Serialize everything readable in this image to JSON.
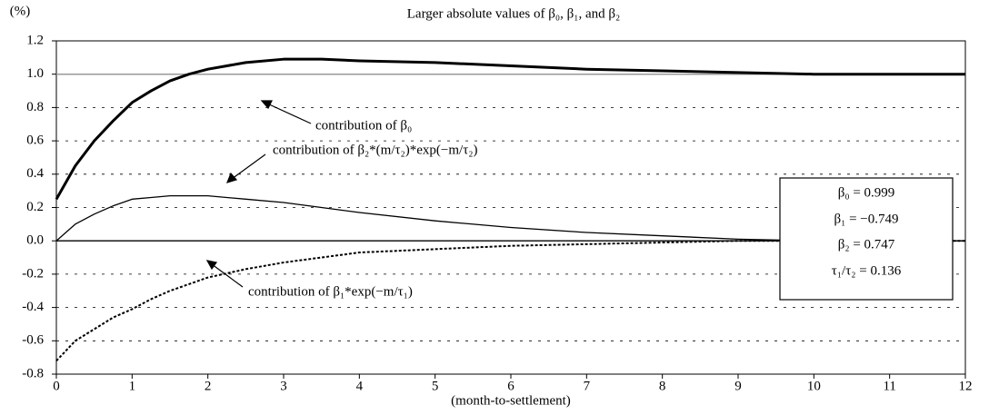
{
  "chart_data": {
    "type": "line",
    "title": "Larger absolute values of β₀, β₁, and β₂",
    "y_unit": "(%)",
    "x_label": "(month-to-settlement)",
    "x": [
      0,
      0.25,
      0.5,
      0.75,
      1,
      1.25,
      1.5,
      1.75,
      2,
      2.5,
      3,
      3.5,
      4,
      5,
      6,
      7,
      8,
      9,
      10,
      11,
      12
    ],
    "series": [
      {
        "color": "#000000",
        "width": 3,
        "dash": false,
        "values": [
          0.25,
          0.45,
          0.6,
          0.72,
          0.83,
          0.9,
          0.96,
          1.0,
          1.03,
          1.07,
          1.09,
          1.09,
          1.08,
          1.07,
          1.05,
          1.03,
          1.02,
          1.01,
          1.0,
          1.0,
          1.0
        ]
      },
      {
        "color": "#000000",
        "width": 1.3,
        "dash": false,
        "values": [
          0,
          0.1,
          0.16,
          0.21,
          0.25,
          0.26,
          0.27,
          0.27,
          0.27,
          0.25,
          0.23,
          0.2,
          0.17,
          0.12,
          0.08,
          0.05,
          0.03,
          0.01,
          0,
          0,
          0
        ]
      },
      {
        "color": "#000000",
        "width": 2,
        "dash": true,
        "values": [
          -0.72,
          -0.6,
          -0.53,
          -0.46,
          -0.41,
          -0.35,
          -0.3,
          -0.26,
          -0.22,
          -0.17,
          -0.13,
          -0.1,
          -0.07,
          -0.05,
          -0.03,
          -0.02,
          -0.01,
          0,
          0,
          0,
          0
        ]
      }
    ],
    "hlines": [
      {
        "value": 1,
        "color": "#999999"
      }
    ],
    "annotations": [
      "contribution of β₀",
      "contribution of β₂*(m/τ₂)*exp(−m/τ₂)",
      "contribution of β₁*exp(−m/τ₁)"
    ],
    "parameters": [
      "β₀ = 0.999",
      "β₁ = −0.749",
      "β₂ = 0.747",
      "τ₁/τ₂ = 0.136"
    ],
    "xlim": [
      0,
      12
    ],
    "xticks": [
      0,
      1,
      2,
      3,
      4,
      5,
      6,
      7,
      8,
      9,
      10,
      11,
      12
    ],
    "ylim": [
      -0.8,
      1.2
    ],
    "yticks": [
      -0.8,
      -0.6,
      -0.4,
      -0.2,
      {
        "value": 0,
        "label": "0.0"
      },
      0.2,
      0.4,
      0.6,
      0.8,
      {
        "value": 1,
        "label": "1.0"
      },
      1.2
    ],
    "grid": true
  }
}
